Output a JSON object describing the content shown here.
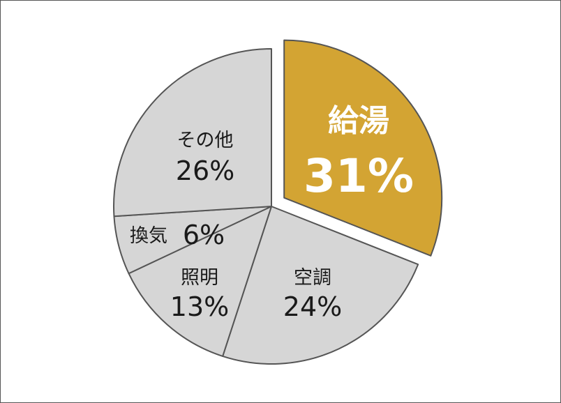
{
  "chart_data": {
    "type": "pie",
    "start": "12 o'clock, clockwise",
    "slices": [
      {
        "label": "給湯",
        "value": 31,
        "display": "31%",
        "color": "#d3a433",
        "exploded": true,
        "highlight": true
      },
      {
        "label": "空調",
        "value": 24,
        "display": "24%",
        "color": "#d6d6d6"
      },
      {
        "label": "照明",
        "value": 13,
        "display": "13%",
        "color": "#d6d6d6"
      },
      {
        "label": "換気",
        "value": 6,
        "display": "6%",
        "color": "#d6d6d6"
      },
      {
        "label": "その他",
        "value": 26,
        "display": "26%",
        "color": "#d6d6d6"
      }
    ],
    "edge_color": "#555555"
  }
}
